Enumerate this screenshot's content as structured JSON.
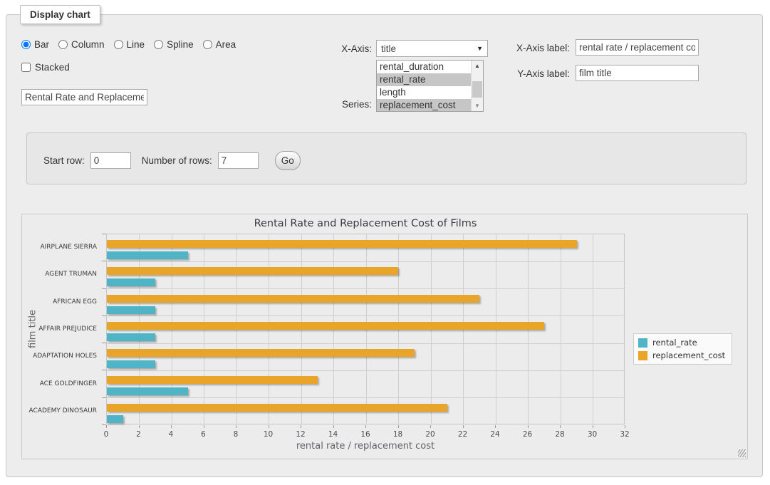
{
  "window": {
    "legend": "Display chart"
  },
  "form": {
    "chart_types": [
      {
        "label": "Bar",
        "selected": true
      },
      {
        "label": "Column",
        "selected": false
      },
      {
        "label": "Line",
        "selected": false
      },
      {
        "label": "Spline",
        "selected": false
      },
      {
        "label": "Area",
        "selected": false
      }
    ],
    "stacked": {
      "label": "Stacked",
      "checked": false
    },
    "chart_title_input": {
      "value": "Rental Rate and Replacement Cost of Films"
    },
    "x_axis_select": {
      "label": "X-Axis:",
      "selected_option": "title",
      "arrow": "▼"
    },
    "series_select": {
      "label": "Series:",
      "options": [
        {
          "label": "rental_duration",
          "selected": false
        },
        {
          "label": "rental_rate",
          "selected": true
        },
        {
          "label": "length",
          "selected": false
        },
        {
          "label": "replacement_cost",
          "selected": true
        }
      ],
      "scrollbar": {
        "up_arrow": "▲",
        "down_arrow": "▼"
      }
    },
    "x_axis_label_input": {
      "label": "X-Axis label:",
      "value": "rental rate / replacement cost"
    },
    "y_axis_label_input": {
      "label": "Y-Axis label:",
      "value": "film title"
    }
  },
  "row_controls": {
    "start_row": {
      "label": "Start row:",
      "value": "0"
    },
    "number_of_rows": {
      "label": "Number of rows:",
      "value": "7"
    },
    "go_button": "Go"
  },
  "chart_data": {
    "type": "bar",
    "orientation": "horizontal",
    "title": "Rental Rate and Replacement Cost of Films",
    "xlabel": "rental rate / replacement cost",
    "ylabel": "film title",
    "xlim": [
      0,
      32
    ],
    "xtick_step": 2,
    "grid": true,
    "legend_position": "right",
    "categories": [
      "AIRPLANE SIERRA",
      "AGENT TRUMAN",
      "AFRICAN EGG",
      "AFFAIR PREJUDICE",
      "ADAPTATION HOLES",
      "ACE GOLDFINGER",
      "ACADEMY DINOSAUR"
    ],
    "series": [
      {
        "name": "rental_rate",
        "color": "#4FB4C6",
        "values": [
          4.99,
          2.99,
          2.99,
          2.99,
          2.99,
          4.99,
          0.99
        ]
      },
      {
        "name": "replacement_cost",
        "color": "#E9A42A",
        "values": [
          28.99,
          17.99,
          22.99,
          26.99,
          18.99,
          12.99,
          20.99
        ]
      }
    ],
    "bar_draw_order_per_category": [
      "replacement_cost",
      "rental_rate"
    ]
  }
}
